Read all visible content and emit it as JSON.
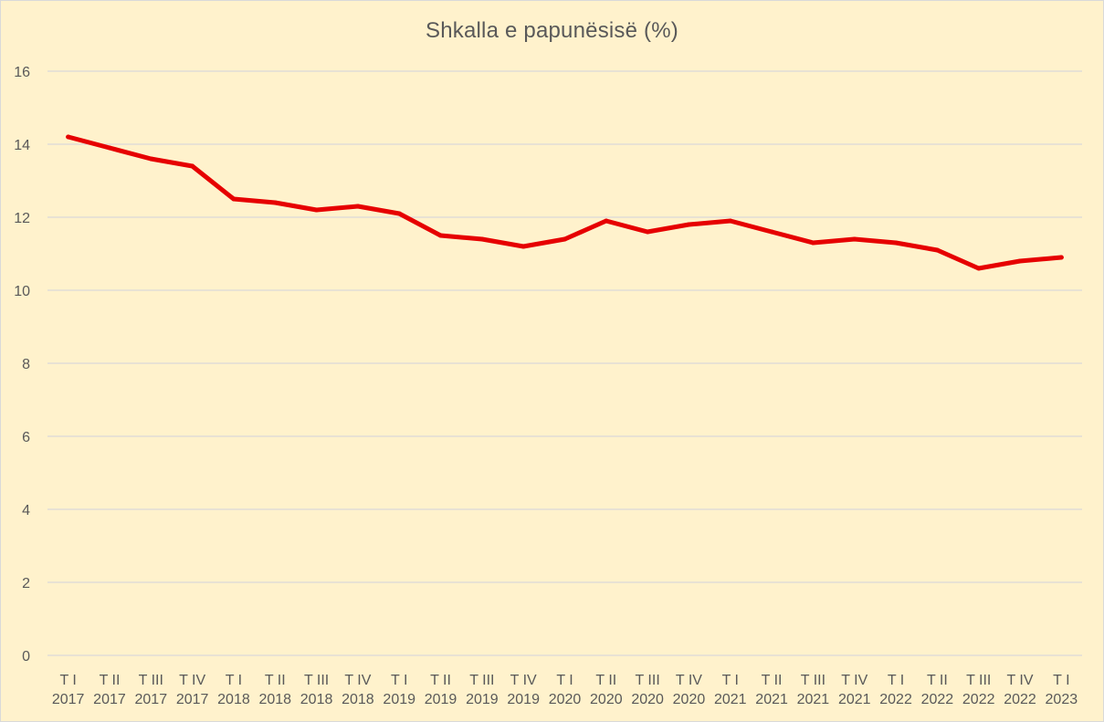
{
  "chart_data": {
    "type": "line",
    "title": "Shkalla e papunësisë (%)",
    "xlabel": "",
    "ylabel": "",
    "ylim": [
      0,
      16
    ],
    "yticks": [
      0,
      2,
      4,
      6,
      8,
      10,
      12,
      14,
      16
    ],
    "grid": true,
    "legend": "none",
    "categories": [
      [
        "T I",
        "2017"
      ],
      [
        "T II",
        "2017"
      ],
      [
        "T III",
        "2017"
      ],
      [
        "T IV",
        "2017"
      ],
      [
        "T I",
        "2018"
      ],
      [
        "T II",
        "2018"
      ],
      [
        "T III",
        "2018"
      ],
      [
        "T IV",
        "2018"
      ],
      [
        "T I",
        "2019"
      ],
      [
        "T II",
        "2019"
      ],
      [
        "T III",
        "2019"
      ],
      [
        "T IV",
        "2019"
      ],
      [
        "T I",
        "2020"
      ],
      [
        "T II",
        "2020"
      ],
      [
        "T III",
        "2020"
      ],
      [
        "T IV",
        "2020"
      ],
      [
        "T I",
        "2021"
      ],
      [
        "T II",
        "2021"
      ],
      [
        "T III",
        "2021"
      ],
      [
        "T IV",
        "2021"
      ],
      [
        "T I",
        "2022"
      ],
      [
        "T II",
        "2022"
      ],
      [
        "T III",
        "2022"
      ],
      [
        "T IV",
        "2022"
      ],
      [
        "T I",
        "2023"
      ]
    ],
    "series": [
      {
        "color": "#e60000",
        "values": [
          14.2,
          13.9,
          13.6,
          13.4,
          12.5,
          12.4,
          12.2,
          12.3,
          12.1,
          11.5,
          11.4,
          11.2,
          11.4,
          11.9,
          11.6,
          11.8,
          11.9,
          11.6,
          11.3,
          11.4,
          11.3,
          11.1,
          10.6,
          10.8,
          10.9
        ]
      }
    ],
    "colors": {
      "background": "#fff2cc",
      "gridline": "#d9d9d9",
      "text": "#595959"
    }
  }
}
